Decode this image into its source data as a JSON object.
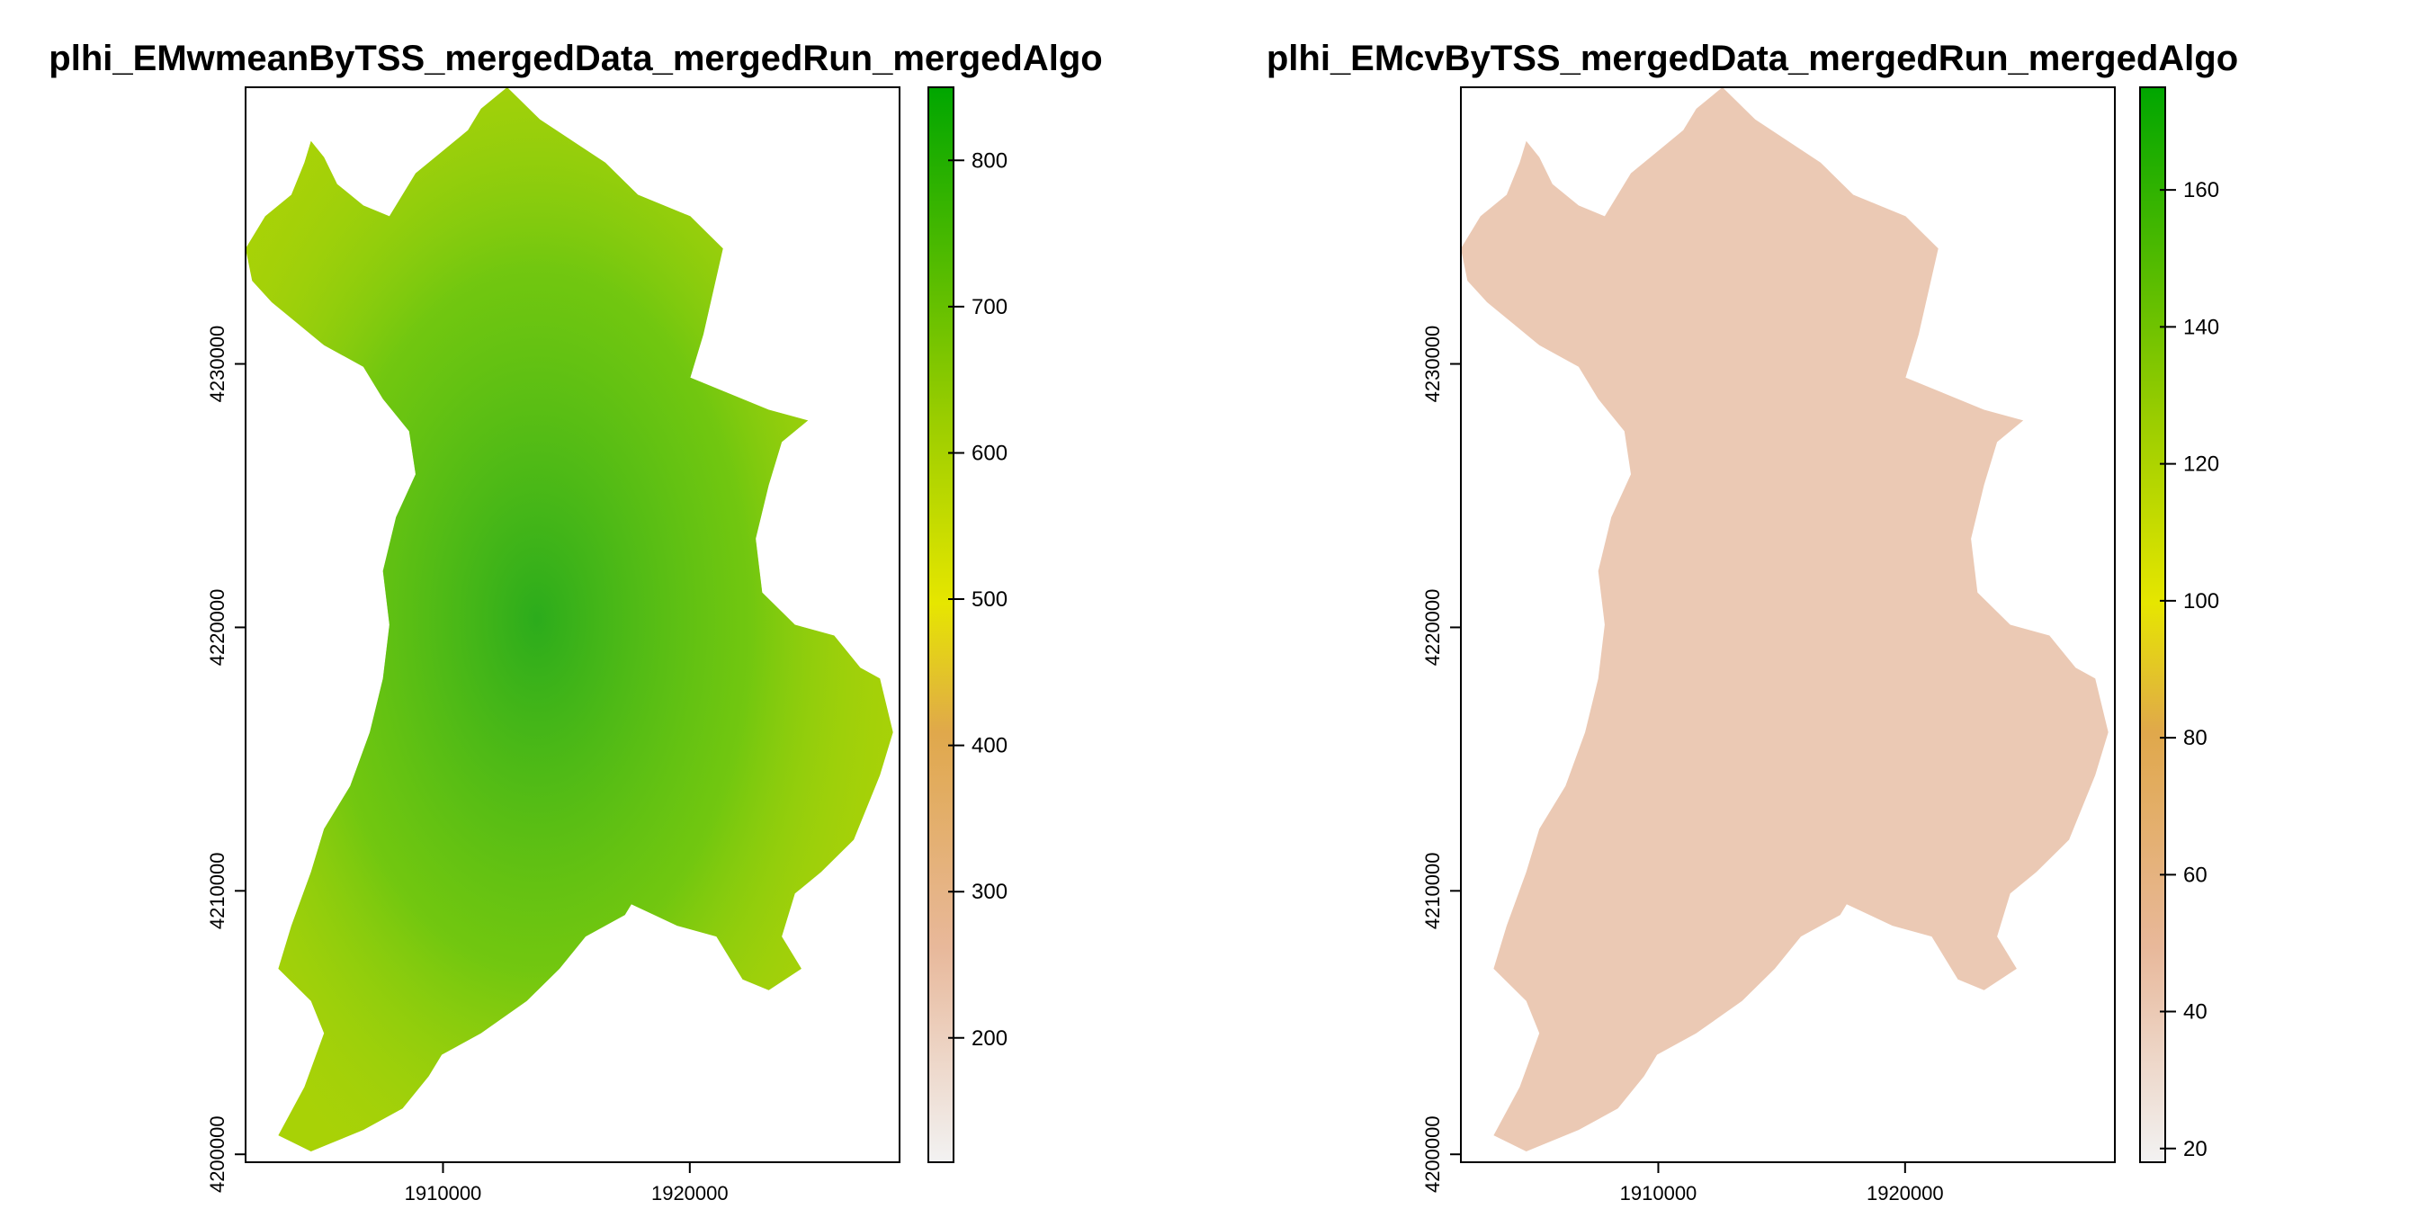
{
  "colors": {
    "low": "#f2f2f2",
    "salmon": "#e8b89a",
    "tan": "#e0a84b",
    "yellow": "#e6e600",
    "yellowgreen": "#96cc00",
    "green": "#00a600"
  },
  "chart_data": [
    {
      "type": "heatmap",
      "title": "plhi_EMwmeanByTSS_mergedData_mergedRun_mergedAlgo",
      "xlabel": "",
      "ylabel": "",
      "x_ticks": [
        "1910000",
        "1920000"
      ],
      "y_ticks": [
        "4200000",
        "4210000",
        "4220000",
        "4230000"
      ],
      "x_tick_values": [
        1910000,
        1920000
      ],
      "y_tick_values": [
        4200000,
        4210000,
        4220000,
        4230000
      ],
      "xlim": [
        1902000,
        1928500
      ],
      "ylim": [
        4199700,
        4240500
      ],
      "colorbar": {
        "ticks": [
          "200",
          "300",
          "400",
          "500",
          "600",
          "700",
          "800"
        ],
        "tick_values": [
          200,
          300,
          400,
          500,
          600,
          700,
          800
        ],
        "range": [
          115,
          850
        ]
      },
      "fill_value": 620,
      "grid": false
    },
    {
      "type": "heatmap",
      "title": "plhi_EMcvByTSS_mergedData_mergedRun_mergedAlgo",
      "xlabel": "",
      "ylabel": "",
      "x_ticks": [
        "1910000",
        "1920000"
      ],
      "y_ticks": [
        "4200000",
        "4210000",
        "4220000",
        "4230000"
      ],
      "x_tick_values": [
        1910000,
        1920000
      ],
      "y_tick_values": [
        4200000,
        4210000,
        4220000,
        4230000
      ],
      "xlim": [
        1902000,
        1928500
      ],
      "ylim": [
        4199700,
        4240500
      ],
      "colorbar": {
        "ticks": [
          "20",
          "40",
          "60",
          "80",
          "100",
          "120",
          "140",
          "160"
        ],
        "tick_values": [
          20,
          40,
          60,
          80,
          100,
          120,
          140,
          160
        ],
        "range": [
          18,
          175
        ]
      },
      "fill_value": 40,
      "grid": false
    }
  ]
}
